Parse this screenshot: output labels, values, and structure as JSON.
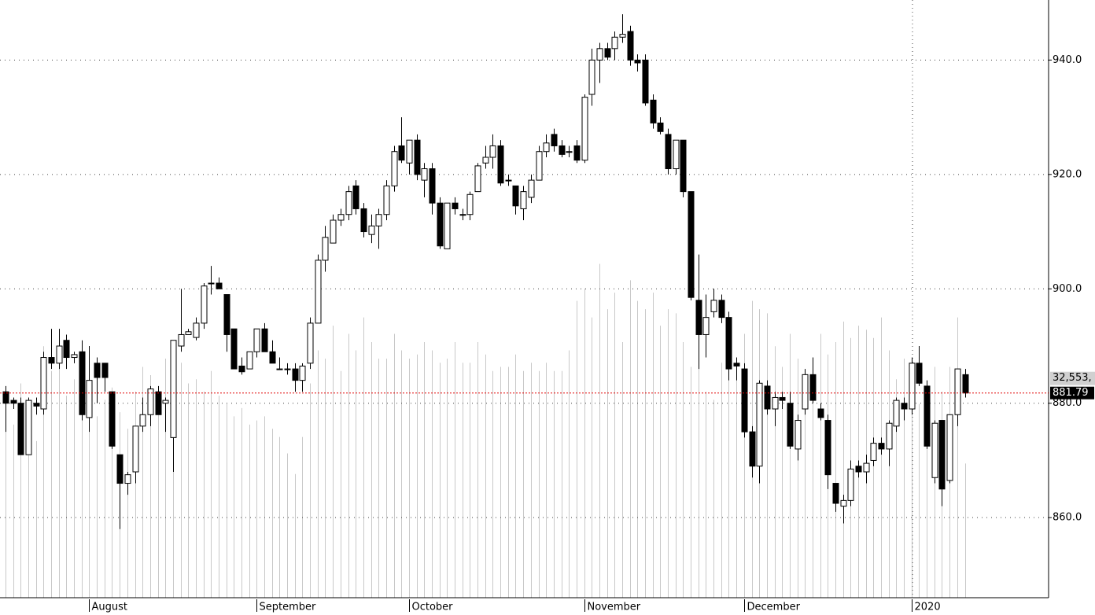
{
  "chart_data": {
    "type": "candlestick",
    "open": [
      882,
      880.5,
      880,
      871,
      880,
      879,
      888,
      887,
      891,
      888,
      889,
      877.5,
      887,
      887,
      882,
      871,
      866,
      868,
      876,
      878,
      882,
      880,
      874,
      890,
      892,
      891.5,
      894,
      901,
      901,
      899,
      893,
      886.5,
      886,
      889,
      893,
      889,
      886,
      886,
      886,
      884,
      887,
      894,
      905,
      908,
      912,
      913,
      918,
      914,
      909.5,
      911,
      913,
      918,
      925,
      922,
      926,
      919,
      921,
      915,
      907,
      915,
      913,
      913,
      917,
      922,
      923,
      925,
      919,
      918,
      914,
      916,
      919,
      924,
      927,
      925,
      924,
      925,
      922.5,
      934,
      940,
      942,
      942,
      944,
      945,
      940,
      940,
      933,
      929,
      927,
      921,
      926,
      917,
      898,
      892,
      896,
      898,
      895,
      887,
      886,
      875,
      869,
      883,
      879,
      881,
      880,
      872,
      879,
      885,
      879,
      877,
      866,
      862,
      863,
      869,
      868,
      870,
      873,
      872,
      876,
      880,
      879,
      887,
      883,
      867,
      877,
      866.5,
      878,
      885
    ],
    "high": [
      883,
      881,
      881,
      881,
      881,
      889,
      893,
      893,
      892,
      889,
      891,
      890,
      888,
      887,
      882,
      871,
      868,
      876,
      881,
      883,
      883,
      881,
      891,
      900,
      893,
      895,
      901,
      904,
      902,
      899,
      893,
      888,
      889,
      893,
      894,
      891,
      888,
      887,
      887,
      887,
      895,
      906,
      911,
      913,
      914,
      918,
      919,
      915,
      913,
      914,
      919,
      925,
      930,
      926,
      927,
      922,
      922,
      916,
      915,
      916,
      914,
      917,
      922,
      925,
      927,
      926,
      920,
      918,
      918,
      920,
      925,
      927,
      928,
      926,
      925,
      926,
      934,
      942,
      943,
      943,
      945,
      948,
      946,
      941,
      941,
      934,
      930,
      928,
      926,
      926,
      917,
      906,
      899,
      900,
      899,
      896,
      888,
      887,
      876,
      884,
      884,
      882,
      882,
      882,
      878,
      886,
      888,
      880,
      878,
      866,
      864,
      870,
      870,
      871,
      874,
      874,
      877,
      881,
      881,
      888,
      890,
      884,
      877,
      877,
      878,
      886,
      886
    ],
    "low": [
      875,
      879,
      871,
      871,
      878,
      878,
      886,
      886,
      886,
      887,
      877,
      875,
      880,
      882,
      872,
      858,
      864,
      866,
      875,
      876,
      878,
      875,
      868,
      889,
      892,
      891,
      893,
      899,
      900,
      889,
      886,
      885,
      886,
      888,
      889,
      887,
      886,
      885,
      882,
      882,
      886,
      894,
      903,
      908,
      911,
      912,
      913,
      909,
      908,
      907,
      912,
      917,
      922,
      920,
      919,
      916,
      913,
      907,
      907,
      913,
      912,
      912,
      917,
      921,
      921,
      918,
      918,
      913,
      912,
      915,
      919,
      923,
      924,
      923,
      923,
      922,
      922,
      932,
      936,
      940,
      940,
      943,
      939,
      938,
      932,
      928,
      927,
      920,
      920,
      916,
      898,
      886,
      888,
      895,
      894,
      884,
      884,
      874,
      867,
      866,
      878,
      876,
      879,
      872,
      870,
      878,
      880,
      877,
      865,
      861,
      859,
      862,
      867,
      866,
      869,
      871,
      869,
      875,
      877,
      878,
      883,
      872,
      866,
      862,
      866,
      876,
      881
    ],
    "close": [
      880,
      880,
      871,
      880.5,
      879.5,
      888,
      887,
      890,
      888,
      888.5,
      878,
      884,
      884.5,
      884.5,
      872.5,
      866,
      867.5,
      876,
      878,
      882.5,
      878,
      880.5,
      891,
      892,
      892.5,
      894,
      900.5,
      901,
      900,
      892,
      886,
      885.5,
      889,
      893,
      889,
      887,
      886,
      886,
      884,
      886.5,
      894,
      905,
      909,
      912,
      913,
      917,
      914,
      910,
      911,
      913,
      918,
      924,
      922.5,
      926,
      920,
      921,
      915,
      907.5,
      915,
      914,
      913,
      916.5,
      921.5,
      923,
      925,
      918.5,
      919,
      914.5,
      917,
      919,
      924,
      925.5,
      925,
      923.5,
      924,
      922.5,
      933.5,
      940,
      942,
      940.5,
      944,
      944.5,
      940,
      939.5,
      932.5,
      929,
      927.5,
      921,
      926,
      917,
      898.5,
      892,
      895,
      898,
      895,
      886,
      886.5,
      875,
      869,
      883.5,
      879,
      881,
      880.5,
      872.5,
      877,
      885,
      880.5,
      877.5,
      867.5,
      862.5,
      863,
      868.5,
      868,
      869.5,
      873,
      872,
      876.5,
      880.5,
      879,
      887,
      883.5,
      872.5,
      876.5,
      865,
      878,
      886,
      881.79
    ],
    "volume": [
      47000,
      42000,
      52000,
      48000,
      38000,
      61000,
      55000,
      58000,
      49000,
      53000,
      60000,
      57000,
      44000,
      48000,
      51000,
      45000,
      41000,
      50000,
      56000,
      54000,
      47000,
      58000,
      60000,
      57000,
      52000,
      53000,
      50000,
      55000,
      49000,
      47000,
      44000,
      46000,
      42000,
      43000,
      44000,
      41000,
      39000,
      35000,
      30000,
      39000,
      52000,
      60000,
      58000,
      66000,
      55000,
      64000,
      60000,
      68000,
      62000,
      58000,
      58000,
      64000,
      60000,
      58000,
      59000,
      62000,
      60000,
      57000,
      58000,
      62000,
      57000,
      57000,
      62000,
      59000,
      55000,
      56000,
      56000,
      59000,
      55000,
      57000,
      55000,
      57000,
      55000,
      55000,
      60000,
      72000,
      75000,
      68000,
      81000,
      70000,
      74000,
      62000,
      77000,
      72000,
      70000,
      74000,
      66000,
      70000,
      69000,
      62000,
      56000,
      57000,
      50000,
      48000,
      57000,
      60000,
      58000,
      64000,
      72000,
      70000,
      69000,
      61000,
      56000,
      64000,
      58000,
      53000,
      55000,
      64000,
      59000,
      62000,
      67000,
      63000,
      66000,
      65000,
      63000,
      68000,
      60000,
      53000,
      58000,
      55000,
      47000,
      51000,
      56000,
      50000,
      56000,
      68000,
      32553
    ],
    "up_color": "#ffffff",
    "down_color": "#000000",
    "volume_color": "#c8c8c8",
    "xlim": [
      -0.72,
      137
    ],
    "xticks": [
      {
        "value": 11,
        "label": "August"
      },
      {
        "value": 33,
        "label": "September"
      },
      {
        "value": 53,
        "label": "October"
      },
      {
        "value": 76,
        "label": "November"
      },
      {
        "value": 97,
        "label": "December"
      },
      {
        "value": 119,
        "label": "2020"
      }
    ],
    "ylim": [
      846,
      950.5
    ],
    "yticks": [
      {
        "value": 860,
        "label": "860.0"
      },
      {
        "value": 880,
        "label": "880.0"
      },
      {
        "value": 900,
        "label": "900.0"
      },
      {
        "value": 920,
        "label": "920.0"
      },
      {
        "value": 940,
        "label": "940.0"
      }
    ],
    "volume_ylim": [
      0,
      145000
    ],
    "grid": true,
    "last_price": {
      "value": 881.79,
      "label": "881.79"
    },
    "last_volume": {
      "value": 32553,
      "label": "32,553,"
    }
  }
}
